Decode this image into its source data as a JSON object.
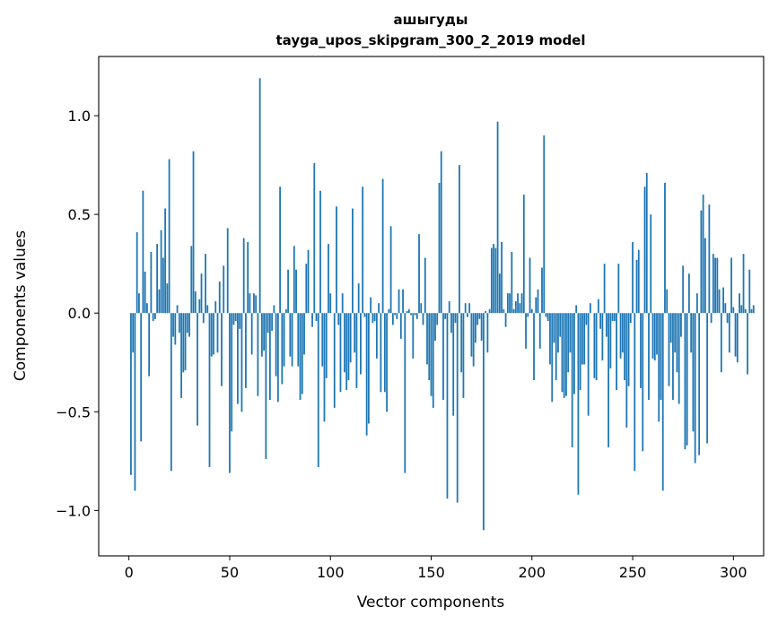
{
  "chart_data": {
    "type": "bar",
    "title": "ашыгуды",
    "subtitle": "tayga_upos_skipgram_300_2_2019 model",
    "xlabel": "Vector components",
    "ylabel": "Components values",
    "xlim": [
      -15,
      315
    ],
    "ylim": [
      -1.23,
      1.3
    ],
    "grid": false,
    "legend": "none",
    "bar_color": "#1f77b4",
    "xticks": [
      {
        "value": 0,
        "label": "0"
      },
      {
        "value": 50,
        "label": "50"
      },
      {
        "value": 100,
        "label": "100"
      },
      {
        "value": 150,
        "label": "150"
      },
      {
        "value": 200,
        "label": "200"
      },
      {
        "value": 250,
        "label": "250"
      },
      {
        "value": 300,
        "label": "300"
      }
    ],
    "yticks": [
      {
        "value": -1.0,
        "label": "−1.0"
      },
      {
        "value": -0.5,
        "label": "−0.5"
      },
      {
        "value": 0.0,
        "label": "0.0"
      },
      {
        "value": 0.5,
        "label": "0.5"
      },
      {
        "value": 1.0,
        "label": "1.0"
      }
    ],
    "x_start": 1,
    "values": [
      -0.82,
      -0.2,
      -0.9,
      0.41,
      0.1,
      -0.65,
      0.62,
      0.21,
      0.05,
      -0.32,
      0.31,
      -0.04,
      -0.03,
      0.35,
      0.12,
      0.42,
      0.28,
      0.53,
      0.15,
      0.78,
      -0.8,
      -0.12,
      -0.16,
      0.04,
      -0.1,
      -0.43,
      -0.3,
      -0.29,
      -0.1,
      -0.12,
      0.34,
      0.82,
      0.11,
      -0.57,
      0.07,
      0.2,
      -0.05,
      0.3,
      0.04,
      -0.78,
      -0.22,
      -0.21,
      0.06,
      -0.2,
      0.16,
      -0.37,
      0.24,
      0.0,
      0.43,
      -0.81,
      -0.6,
      -0.06,
      -0.04,
      -0.46,
      -0.08,
      -0.5,
      0.38,
      -0.38,
      0.36,
      0.1,
      -0.21,
      0.1,
      0.09,
      -0.42,
      1.19,
      -0.22,
      -0.19,
      -0.74,
      -0.1,
      -0.44,
      -0.09,
      0.04,
      -0.32,
      -0.45,
      0.64,
      -0.36,
      -0.27,
      0.02,
      0.22,
      -0.22,
      -0.27,
      0.34,
      0.22,
      -0.27,
      -0.44,
      -0.41,
      -0.21,
      0.25,
      0.32,
      0.0,
      -0.07,
      0.76,
      -0.04,
      -0.78,
      0.62,
      -0.27,
      -0.55,
      -0.33,
      0.35,
      0.1,
      0.0,
      -0.48,
      0.54,
      -0.06,
      -0.4,
      0.1,
      -0.3,
      -0.39,
      -0.34,
      -0.25,
      0.53,
      -0.2,
      -0.38,
      0.15,
      -0.31,
      0.64,
      -0.02,
      -0.62,
      -0.56,
      0.08,
      -0.05,
      -0.04,
      -0.23,
      0.05,
      -0.4,
      0.68,
      -0.4,
      -0.5,
      0.02,
      0.44,
      -0.06,
      -0.01,
      -0.03,
      0.12,
      -0.13,
      0.12,
      -0.81,
      0.01,
      0.02,
      -0.01,
      -0.23,
      -0.01,
      -0.03,
      0.4,
      0.05,
      -0.06,
      0.28,
      -0.26,
      -0.34,
      -0.42,
      -0.48,
      -0.14,
      -0.06,
      0.66,
      0.82,
      -0.44,
      -0.03,
      -0.94,
      0.06,
      -0.1,
      -0.52,
      -0.05,
      -0.96,
      0.75,
      -0.3,
      -0.43,
      0.05,
      -0.02,
      0.05,
      -0.22,
      -0.27,
      -0.15,
      -0.06,
      -0.03,
      -0.14,
      -1.1,
      0.01,
      -0.2,
      0.02,
      0.33,
      0.35,
      0.33,
      0.97,
      0.2,
      0.36,
      0.02,
      -0.07,
      0.1,
      0.1,
      0.31,
      0.02,
      0.06,
      0.1,
      0.05,
      0.1,
      0.6,
      -0.18,
      -0.02,
      0.28,
      0.02,
      -0.34,
      0.08,
      0.12,
      -0.18,
      0.23,
      0.9,
      -0.02,
      -0.04,
      -0.26,
      -0.45,
      -0.15,
      -0.34,
      -0.2,
      -0.12,
      -0.4,
      -0.43,
      -0.42,
      -0.3,
      -0.2,
      -0.68,
      -0.41,
      0.04,
      -0.92,
      -0.39,
      -0.26,
      -0.26,
      -0.06,
      -0.52,
      0.05,
      0.0,
      -0.33,
      -0.34,
      0.07,
      -0.08,
      -0.24,
      0.25,
      -0.12,
      -0.68,
      -0.28,
      -0.04,
      -0.04,
      -0.39,
      0.25,
      -0.23,
      -0.2,
      -0.34,
      -0.58,
      -0.37,
      -0.05,
      0.36,
      -0.8,
      0.27,
      0.32,
      -0.38,
      -0.7,
      0.64,
      0.71,
      -0.44,
      0.5,
      -0.23,
      -0.24,
      -0.21,
      -0.55,
      -0.44,
      -0.9,
      0.66,
      0.12,
      -0.37,
      -0.15,
      -0.44,
      -0.2,
      -0.3,
      -0.46,
      -0.12,
      0.24,
      -0.69,
      -0.67,
      0.2,
      -0.2,
      -0.6,
      -0.76,
      0.1,
      -0.72,
      0.52,
      0.6,
      0.38,
      -0.66,
      0.55,
      -0.05,
      0.3,
      0.28,
      0.28,
      0.12,
      -0.3,
      0.13,
      0.05,
      -0.05,
      -0.2,
      0.28,
      0.03,
      -0.22,
      -0.25,
      0.1,
      0.04,
      0.3,
      0.02,
      -0.31,
      0.22,
      0.02,
      0.04
    ]
  }
}
